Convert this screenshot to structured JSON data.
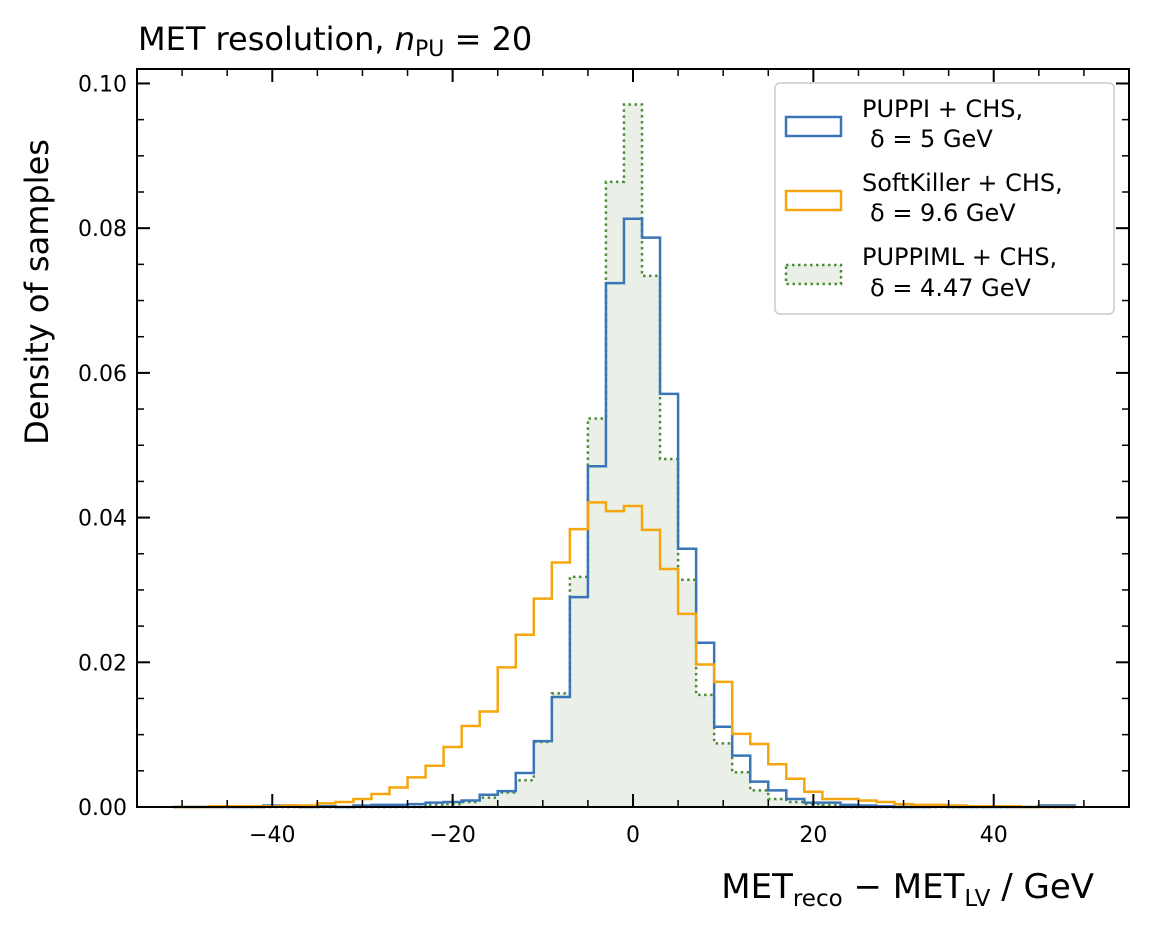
{
  "chart_data": {
    "type": "histogram-step",
    "title": {
      "prefix": "MET resolution, ",
      "var": "n",
      "sub": "PU",
      "suffix": " = 20"
    },
    "ylabel": "Density of samples",
    "xlabel": {
      "a": "MET",
      "a_sub": "reco",
      "mid": " − ",
      "b": "MET",
      "b_sub": "LV",
      "suffix": " / GeV"
    },
    "xlim": [
      -55,
      55
    ],
    "ylim": [
      0,
      0.102
    ],
    "x_ticks": [
      -40,
      -20,
      0,
      20,
      40
    ],
    "x_tick_labels": [
      "−40",
      "−20",
      "0",
      "20",
      "40"
    ],
    "y_ticks": [
      0,
      0.02,
      0.04,
      0.06,
      0.08,
      0.1
    ],
    "y_tick_labels": [
      "0.00",
      "0.02",
      "0.04",
      "0.06",
      "0.08",
      "0.10"
    ],
    "x_minor_step": 5,
    "y_minor_step": 0.005,
    "bin_edges": [
      -51,
      -49,
      -47,
      -45,
      -43,
      -41,
      -39,
      -37,
      -35,
      -33,
      -31,
      -29,
      -27,
      -25,
      -23,
      -21,
      -19,
      -17,
      -15,
      -13,
      -11,
      -9,
      -7,
      -5,
      -3,
      -1,
      1,
      3,
      5,
      7,
      9,
      11,
      13,
      15,
      17,
      19,
      21,
      23,
      25,
      27,
      29,
      31,
      33,
      35,
      37,
      39,
      41,
      43,
      45,
      47,
      49,
      51
    ],
    "series": [
      {
        "name": "PUPPI + CHS,",
        "resolution": "δ = 5 GeV",
        "color": "#3a75b8",
        "style": "solid",
        "filled": false,
        "values": [
          0,
          0,
          0,
          0,
          0,
          0.0002,
          0.0002,
          0,
          0.0001,
          0,
          0.0002,
          0.0003,
          0.0003,
          0.0004,
          0.0006,
          0.0007,
          0.0009,
          0.0017,
          0.0022,
          0.0047,
          0.0091,
          0.0152,
          0.029,
          0.0471,
          0.0724,
          0.0813,
          0.0787,
          0.0571,
          0.0357,
          0.0227,
          0.0111,
          0.0071,
          0.0035,
          0.0023,
          0.0011,
          0.0006,
          0.0006,
          0.0003,
          0.0002,
          0.0001,
          0,
          0,
          0.0001,
          0,
          0,
          0,
          0,
          0,
          0.0002,
          0.0002
        ]
      },
      {
        "name": "SoftKiller + CHS,",
        "resolution": "δ = 9.6 GeV",
        "color": "#f5a60f",
        "style": "solid",
        "filled": false,
        "values": [
          0,
          0,
          0.0001,
          0.0001,
          0.0001,
          0.0001,
          0.0002,
          0.0002,
          0.0005,
          0.0007,
          0.0011,
          0.0018,
          0.0027,
          0.0041,
          0.0057,
          0.0083,
          0.0112,
          0.0132,
          0.0193,
          0.0238,
          0.0288,
          0.0338,
          0.0384,
          0.0421,
          0.0409,
          0.0416,
          0.0383,
          0.0329,
          0.0267,
          0.0197,
          0.0173,
          0.0101,
          0.0087,
          0.0059,
          0.0039,
          0.0021,
          0.0011,
          0.0011,
          0.0009,
          0.0007,
          0.0004,
          0.0003,
          0.0003,
          0.0002,
          0.0001,
          0.0001,
          0.0001,
          0,
          0,
          0
        ]
      },
      {
        "name": "PUPPIML + CHS,",
        "resolution": "δ = 4.47 GeV",
        "color": "#4a8a3a",
        "fill": "#eaf0e7",
        "style": "dotted",
        "filled": true,
        "values": [
          0,
          0,
          0,
          0,
          0,
          0,
          0,
          0,
          0,
          0,
          0,
          0,
          0,
          0,
          0.0003,
          0.0004,
          0.0007,
          0.0013,
          0.002,
          0.0037,
          0.009,
          0.0157,
          0.0318,
          0.0537,
          0.0864,
          0.0971,
          0.0734,
          0.0481,
          0.0314,
          0.0155,
          0.0088,
          0.0048,
          0.0023,
          0.0011,
          0.0007,
          0.0004,
          0.0003,
          0,
          0,
          0,
          0,
          0,
          0,
          0,
          0,
          0,
          0,
          0,
          0,
          0
        ]
      }
    ],
    "legend": {
      "position": "top-right"
    }
  }
}
